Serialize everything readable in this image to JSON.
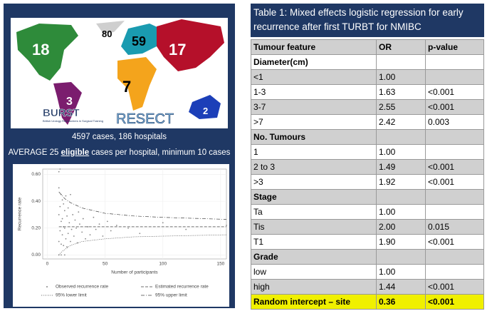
{
  "map": {
    "region_counts": [
      "18",
      "80",
      "59",
      "17",
      "3",
      "7",
      "2"
    ],
    "logos": [
      "BURST",
      "RESECT"
    ],
    "logo_subtitle": "British Urology Researchers in Surgical Training"
  },
  "summary": {
    "line1": "4597 cases, 186 hospitals",
    "line2_start": "AVERAGE 25",
    "line2_emphasis": "eligible",
    "line2_end": "cases per hospital, minimum 10 cases"
  },
  "chart_data": {
    "type": "scatter",
    "x_label": "Number of participants",
    "y_label": "Recurrence rate",
    "xlim": [
      -4,
      155
    ],
    "ylim": [
      -0.03,
      0.64
    ],
    "xticks": [
      0,
      50,
      100,
      150
    ],
    "yticks": [
      {
        "value": 0,
        "label": "0.00"
      },
      {
        "value": 0.2,
        "label": "0.20"
      },
      {
        "value": 0.4,
        "label": "0.40"
      },
      {
        "value": 0.6,
        "label": "0.60"
      }
    ],
    "series": [
      {
        "name": "Observed recurrence rate",
        "style": "points",
        "color": "#888888",
        "x": [
          10,
          10,
          10,
          10,
          10,
          11,
          11,
          11,
          12,
          12,
          12,
          12,
          13,
          13,
          13,
          14,
          14,
          14,
          15,
          15,
          15,
          16,
          16,
          17,
          17,
          18,
          18,
          19,
          20,
          20,
          21,
          22,
          23,
          24,
          25,
          26,
          27,
          28,
          30,
          31,
          33,
          35,
          37,
          40,
          42,
          45,
          48,
          52,
          55,
          60,
          70,
          80,
          100,
          120,
          155
        ],
        "values": [
          0.62,
          0.5,
          0.3,
          0.1,
          0,
          0.64,
          0.36,
          0.18,
          0.45,
          0.25,
          0.08,
          0,
          0.41,
          0.27,
          0.15,
          0.38,
          0.21,
          0.07,
          0.33,
          0.2,
          0,
          0.44,
          0.12,
          0.29,
          0.06,
          0.35,
          0.16,
          0.24,
          0.45,
          0.1,
          0.19,
          0.3,
          0.14,
          0.26,
          0.2,
          0.09,
          0.32,
          0.23,
          0.17,
          0.27,
          0.12,
          0.21,
          0.15,
          0.28,
          0.19,
          0.23,
          0.14,
          0.25,
          0.18,
          0.22,
          0.2,
          0.16,
          0.24,
          0.19,
          0.22
        ]
      },
      {
        "name": "Estimated recurrence rate",
        "style": "dashed",
        "color": "#444444",
        "x": [
          10,
          155
        ],
        "values": [
          0.21,
          0.21
        ]
      },
      {
        "name": "95% lower limit",
        "style": "dotted",
        "color": "#444444",
        "x": [
          10,
          12,
          15,
          20,
          30,
          50,
          75,
          100,
          155
        ],
        "values": [
          0.0,
          0.02,
          0.04,
          0.07,
          0.1,
          0.12,
          0.135,
          0.14,
          0.15
        ]
      },
      {
        "name": "95% upper limit",
        "style": "dashdot",
        "color": "#444444",
        "x": [
          10,
          12,
          15,
          20,
          30,
          50,
          75,
          100,
          155
        ],
        "values": [
          0.47,
          0.45,
          0.42,
          0.39,
          0.35,
          0.31,
          0.29,
          0.28,
          0.265
        ]
      }
    ]
  },
  "table": {
    "title": "Table 1: Mixed effects logistic regression for early recurrence after first TURBT for NMIBC",
    "header": [
      "Tumour feature",
      "OR",
      "p-value"
    ],
    "rows": [
      [
        "Diameter(cm)"
      ],
      [
        "<1",
        "1.00"
      ],
      [
        "1-3",
        "1.63",
        "<0.001"
      ],
      [
        "3-7",
        "2.55",
        "<0.001"
      ],
      [
        ">7",
        "2.42",
        "0.003"
      ],
      [
        "No. Tumours"
      ],
      [
        "1",
        "1.00"
      ],
      [
        "2 to 3",
        "1.49",
        "<0.001"
      ],
      [
        ">3",
        "1.92",
        "<0.001"
      ],
      [
        "Stage"
      ],
      [
        "Ta",
        "1.00"
      ],
      [
        "Tis",
        "2.00",
        "0.015"
      ],
      [
        "T1",
        "1.90",
        "<0.001"
      ],
      [
        "Grade"
      ],
      [
        "low",
        "1.00"
      ],
      [
        "high",
        "1.44",
        "<0.001"
      ],
      [
        "Random intercept – site",
        "0.36",
        "<0.001"
      ]
    ]
  }
}
